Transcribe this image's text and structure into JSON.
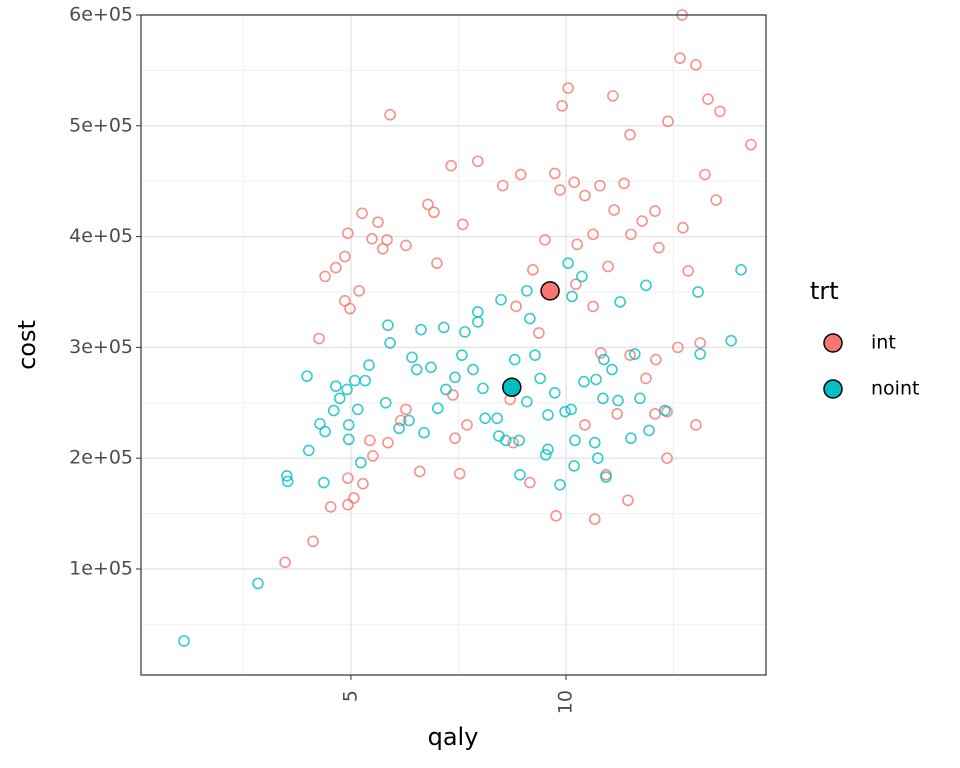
{
  "chart_data": {
    "type": "scatter",
    "x_label": "qaly",
    "y_label": "cost",
    "legend_title": "trt",
    "xlim": [
      0.12,
      14.65
    ],
    "ylim": [
      4300,
      600000
    ],
    "xticks": [
      5,
      10
    ],
    "yticks": [
      {
        "value": 100000,
        "label": "1e+05"
      },
      {
        "value": 200000,
        "label": "2e+05"
      },
      {
        "value": 300000,
        "label": "3e+05"
      },
      {
        "value": 400000,
        "label": "4e+05"
      },
      {
        "value": 500000,
        "label": "5e+05"
      },
      {
        "value": 600000,
        "label": "6e+05"
      }
    ],
    "xminor": [
      2.5,
      7.5,
      12.5
    ],
    "yminor": [
      50000,
      150000,
      250000,
      350000,
      450000,
      550000
    ],
    "grid": true,
    "legend": "right",
    "series": [
      {
        "name": "int",
        "color": "#F8766D",
        "mean_x": 9.63,
        "mean_y": 351000,
        "x": [
          12.7,
          12.65,
          13.02,
          10.05,
          13.3,
          13.58,
          5.91,
          9.91,
          11.09,
          12.37,
          14.3,
          6.79,
          7.95,
          7.33,
          5.26,
          5.63,
          6.93,
          7.6,
          4.93,
          5.49,
          5.84,
          6.28,
          7.0,
          5.74,
          4.86,
          4.65,
          4.4,
          4.26,
          4.86,
          4.98,
          5.19,
          8.53,
          8.95,
          9.74,
          9.86,
          10.19,
          10.44,
          10.79,
          11.12,
          11.35,
          11.51,
          11.77,
          12.07,
          12.16,
          9.51,
          10.26,
          10.63,
          10.98,
          9.23,
          10.23,
          10.63,
          8.84,
          9.37,
          10.81,
          11.49,
          12.09,
          12.6,
          13.12,
          13.02,
          11.86,
          12.35,
          11.19,
          10.44,
          8.77,
          9.16,
          9.77,
          10.67,
          11.44,
          10.93,
          12.07,
          12.35,
          7.42,
          7.53,
          6.6,
          6.16,
          5.86,
          5.44,
          5.28,
          4.93,
          5.07,
          4.93,
          4.53,
          4.12,
          3.47,
          6.28,
          7.37,
          7.7,
          5.51,
          8.7,
          12.84,
          12.72,
          13.49,
          13.23,
          11.49
        ],
        "values": [
          600000,
          561000,
          555000,
          534000,
          524000,
          513000,
          510000,
          518000,
          527000,
          504000,
          483000,
          429000,
          468000,
          464000,
          421000,
          413000,
          422000,
          411000,
          403000,
          398000,
          397000,
          392000,
          376000,
          389000,
          382000,
          372000,
          364000,
          308000,
          342000,
          335000,
          351000,
          446000,
          456000,
          457000,
          442000,
          449000,
          437000,
          446000,
          424000,
          448000,
          402000,
          414000,
          423000,
          390000,
          397000,
          393000,
          402000,
          373000,
          370000,
          357000,
          337000,
          337000,
          313000,
          295000,
          293000,
          289000,
          300000,
          304000,
          230000,
          272000,
          242000,
          240000,
          230000,
          214000,
          178000,
          148000,
          145000,
          162000,
          185000,
          240000,
          200000,
          218000,
          186000,
          188000,
          234000,
          214000,
          216000,
          177000,
          182000,
          164000,
          158000,
          156000,
          125000,
          106000,
          244000,
          257000,
          230000,
          202000,
          253000,
          369000,
          408000,
          433000,
          456000,
          492000
        ]
      },
      {
        "name": "noint",
        "color": "#00BFC4",
        "mean_x": 8.74,
        "mean_y": 264000,
        "x": [
          14.07,
          13.84,
          13.12,
          13.07,
          11.86,
          11.26,
          10.05,
          10.37,
          10.14,
          9.09,
          8.49,
          9.16,
          7.95,
          7.95,
          7.65,
          7.16,
          6.63,
          5.86,
          5.91,
          6.42,
          6.53,
          6.86,
          7.58,
          7.42,
          7.21,
          7.02,
          6.7,
          6.12,
          6.35,
          5.81,
          5.42,
          5.09,
          5.33,
          4.91,
          4.74,
          4.6,
          4.65,
          4.95,
          4.95,
          5.16,
          4.4,
          4.28,
          3.98,
          4.02,
          4.37,
          3.51,
          3.53,
          2.84,
          1.12,
          5.23,
          8.07,
          8.4,
          8.12,
          8.44,
          8.6,
          8.91,
          8.93,
          9.58,
          9.53,
          9.58,
          9.86,
          10.19,
          10.21,
          10.67,
          10.74,
          10.93,
          11.51,
          11.93,
          12.3,
          11.72,
          11.21,
          11.07,
          11.6,
          10.88,
          10.7,
          10.42,
          9.98,
          10.12,
          9.74,
          9.4,
          8.81,
          9.28,
          9.09,
          7.84,
          10.86
        ],
        "values": [
          370000,
          306000,
          294000,
          350000,
          356000,
          341000,
          376000,
          364000,
          346000,
          351000,
          343000,
          326000,
          332000,
          323000,
          314000,
          318000,
          316000,
          320000,
          304000,
          291000,
          280000,
          282000,
          293000,
          273000,
          262000,
          245000,
          223000,
          227000,
          234000,
          250000,
          284000,
          270000,
          270000,
          262000,
          254000,
          243000,
          265000,
          230000,
          217000,
          244000,
          224000,
          231000,
          274000,
          207000,
          178000,
          184000,
          179000,
          87000,
          35000,
          196000,
          263000,
          236000,
          236000,
          220000,
          216000,
          216000,
          185000,
          208000,
          203000,
          239000,
          176000,
          193000,
          216000,
          214000,
          200000,
          183000,
          218000,
          225000,
          243000,
          254000,
          252000,
          280000,
          294000,
          289000,
          271000,
          269000,
          242000,
          244000,
          259000,
          272000,
          289000,
          293000,
          251000,
          280000,
          254000
        ]
      }
    ]
  }
}
